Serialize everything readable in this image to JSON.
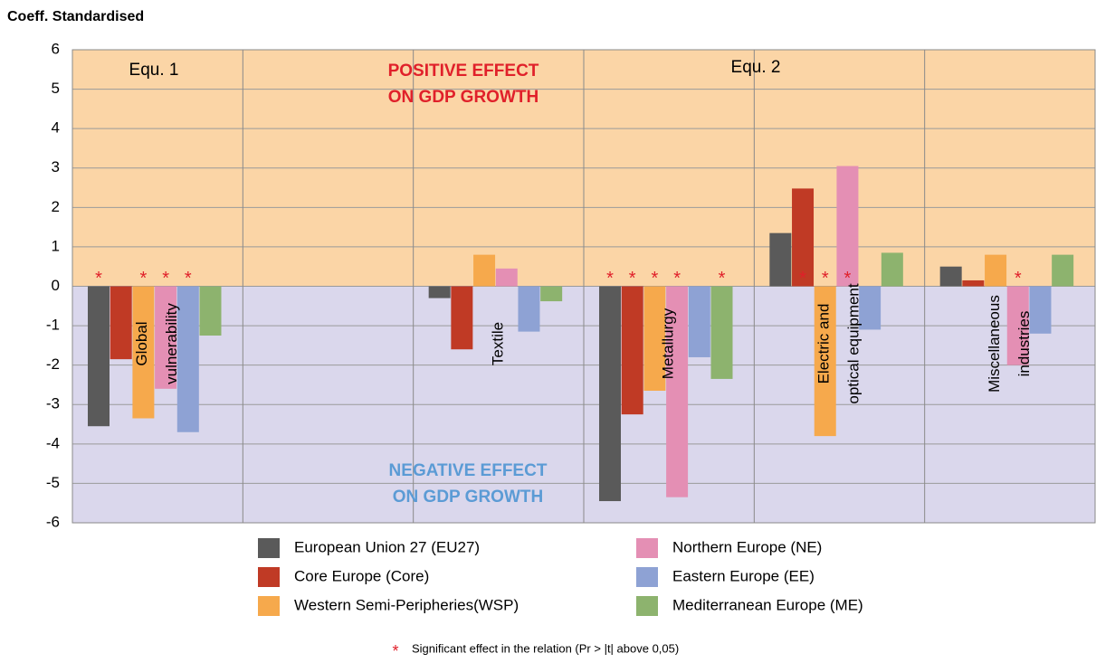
{
  "chart_data": {
    "type": "bar",
    "y_label": "Coeff. Standardised",
    "annotations": [
      "Equ. 1",
      "Equ. 2"
    ],
    "positive_note": [
      "POSITIVE EFFECT",
      "ON GDP GROWTH"
    ],
    "negative_note": [
      "NEGATIVE EFFECT",
      "ON GDP GROWTH"
    ],
    "significance_marker": "*",
    "significance_note": "Significant effect in the relation (Pr > |t| above 0,05)",
    "categories": [
      [
        "Global",
        "vulnerability"
      ],
      null,
      [
        "Textile"
      ],
      [
        "Metallurgy"
      ],
      [
        "Electric and",
        "optical equipment"
      ],
      [
        "Miscellaneous",
        "industries"
      ]
    ],
    "series": [
      {
        "name": "European Union 27 (EU27)",
        "color": "#5a5a5a",
        "values": [
          -3.55,
          null,
          -0.3,
          -5.45,
          1.35,
          0.5
        ],
        "significant": [
          true,
          false,
          false,
          true,
          false,
          false
        ]
      },
      {
        "name": "Core Europe (Core)",
        "color": "#c03a25",
        "values": [
          -1.85,
          null,
          -1.6,
          -3.25,
          2.48,
          0.15
        ],
        "significant": [
          false,
          false,
          false,
          true,
          true,
          false
        ]
      },
      {
        "name": "Western Semi-Peripheries(WSP)",
        "color": "#f6a94c",
        "values": [
          -3.35,
          null,
          0.8,
          -2.65,
          -3.8,
          0.8
        ],
        "significant": [
          true,
          false,
          false,
          true,
          true,
          false
        ]
      },
      {
        "name": "Northern Europe (NE)",
        "color": "#e48fb4",
        "values": [
          -2.6,
          null,
          0.45,
          -5.35,
          3.05,
          -2.0
        ],
        "significant": [
          true,
          false,
          false,
          true,
          true,
          true
        ]
      },
      {
        "name": "Eastern Europe (EE)",
        "color": "#8ea2d4",
        "values": [
          -3.7,
          null,
          -1.15,
          -1.8,
          -1.1,
          -1.2
        ],
        "significant": [
          true,
          false,
          false,
          false,
          false,
          false
        ]
      },
      {
        "name": "Mediterranean Europe (ME)",
        "color": "#8db36e",
        "values": [
          -1.25,
          null,
          -0.38,
          -2.35,
          0.85,
          0.8
        ],
        "significant": [
          false,
          false,
          false,
          true,
          false,
          false
        ]
      }
    ],
    "ylim": [
      -6,
      6
    ],
    "yticks": [
      -6,
      -5,
      -4,
      -3,
      -2,
      -1,
      0,
      1,
      2,
      3,
      4,
      5,
      6
    ],
    "grid": true,
    "positive_color": "#fbd5a6",
    "negative_color": "#dad7ec"
  }
}
